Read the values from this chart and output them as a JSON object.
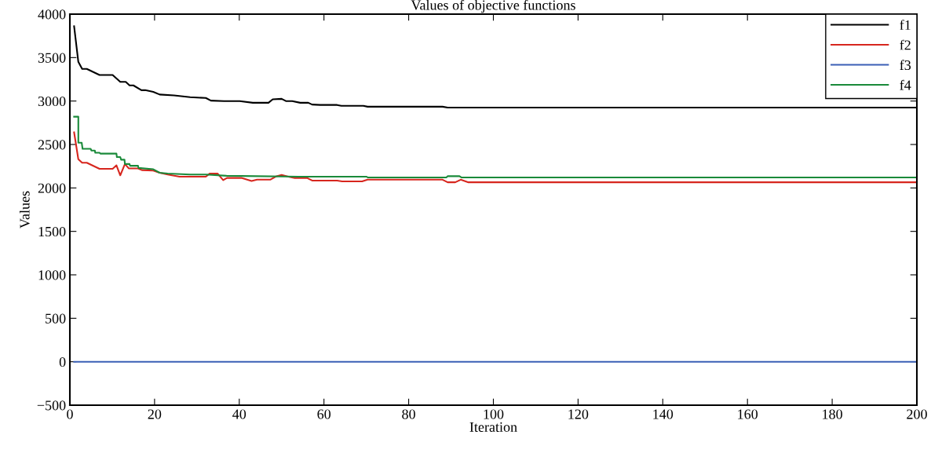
{
  "chart_data": {
    "type": "line",
    "title": "Values of objective functions",
    "xlabel": "Iteration",
    "ylabel": "Values",
    "xlim": [
      0,
      200
    ],
    "ylim": [
      -500,
      4000
    ],
    "xticks": [
      0,
      20,
      40,
      60,
      80,
      100,
      120,
      140,
      160,
      180,
      200
    ],
    "yticks": [
      {
        "value": -500,
        "label": "−500"
      },
      0,
      500,
      1000,
      1500,
      2000,
      2500,
      3000,
      3500,
      4000
    ],
    "legend": "top right",
    "grid": false,
    "marker": "none",
    "line_style": "solid",
    "series": [
      {
        "name": "f1",
        "color": "#000000",
        "x": [
          1,
          2,
          2.9,
          4,
          7,
          10.1,
          11.9,
          13.2,
          14.1,
          15,
          16.9,
          17.8,
          19.7,
          21.2,
          24.6,
          28.4,
          32.1,
          33.3,
          36.4,
          40.1,
          43.2,
          46.9,
          47.9,
          50,
          51,
          52.5,
          54.4,
          56.3,
          57.2,
          59.1,
          63.1,
          64.1,
          69.3,
          70.3,
          88,
          89.2,
          200
        ],
        "values": [
          3860,
          3450,
          3370,
          3370,
          3300,
          3300,
          3220,
          3220,
          3180,
          3180,
          3125,
          3125,
          3105,
          3075,
          3065,
          3045,
          3035,
          3005,
          3000,
          3000,
          2980,
          2980,
          3020,
          3025,
          3000,
          3000,
          2980,
          2980,
          2960,
          2955,
          2955,
          2945,
          2945,
          2935,
          2935,
          2925,
          2925
        ]
      },
      {
        "name": "f2",
        "color": "#d7261e",
        "x": [
          1,
          2,
          2.9,
          4,
          7,
          10.1,
          11,
          11.9,
          13,
          13.9,
          16.1,
          17,
          19.7,
          21.2,
          23.1,
          25.9,
          32.1,
          33,
          34.9,
          36.2,
          37.1,
          40.5,
          42.9,
          44.2,
          47.3,
          48.8,
          50,
          51.6,
          53.1,
          56,
          57.2,
          63.1,
          64.3,
          69,
          70.3,
          88,
          89.2,
          91,
          92.3,
          94.1,
          200
        ],
        "values": [
          2640,
          2330,
          2290,
          2290,
          2220,
          2220,
          2260,
          2145,
          2275,
          2225,
          2225,
          2205,
          2200,
          2175,
          2155,
          2130,
          2130,
          2165,
          2165,
          2090,
          2115,
          2115,
          2080,
          2095,
          2095,
          2135,
          2150,
          2130,
          2115,
          2115,
          2085,
          2085,
          2075,
          2075,
          2095,
          2095,
          2065,
          2065,
          2095,
          2065,
          2065
        ]
      },
      {
        "name": "f3",
        "color": "#3a5fb5",
        "x": [
          1,
          200
        ],
        "values": [
          0,
          0
        ]
      },
      {
        "name": "f4",
        "color": "#1a8a3a",
        "x": [
          1,
          2,
          2,
          2.8,
          3,
          4.9,
          5.1,
          5.9,
          6,
          7,
          7.2,
          11,
          11.1,
          11.9,
          12.1,
          12.9,
          13,
          14.1,
          14.2,
          16.1,
          16.2,
          19.7,
          21.2,
          23.1,
          28.4,
          32.1,
          37,
          54.1,
          70,
          70.4,
          88.9,
          89.2,
          92,
          92.5,
          200
        ],
        "values": [
          2820,
          2820,
          2520,
          2520,
          2450,
          2450,
          2430,
          2430,
          2405,
          2405,
          2395,
          2395,
          2355,
          2355,
          2325,
          2325,
          2275,
          2275,
          2255,
          2255,
          2230,
          2215,
          2175,
          2165,
          2155,
          2155,
          2140,
          2130,
          2130,
          2120,
          2120,
          2135,
          2135,
          2120,
          2120
        ]
      }
    ]
  }
}
